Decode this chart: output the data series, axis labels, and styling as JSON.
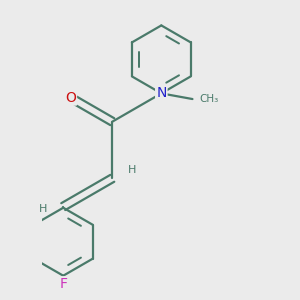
{
  "background_color": "#ebebeb",
  "bond_color": "#4a7a6a",
  "N_color": "#2222cc",
  "O_color": "#cc1111",
  "F_color": "#cc33bb",
  "line_width": 1.6,
  "figsize": [
    3.0,
    3.0
  ],
  "dpi": 100,
  "xlim": [
    -1.8,
    2.0
  ],
  "ylim": [
    -2.8,
    2.4
  ]
}
